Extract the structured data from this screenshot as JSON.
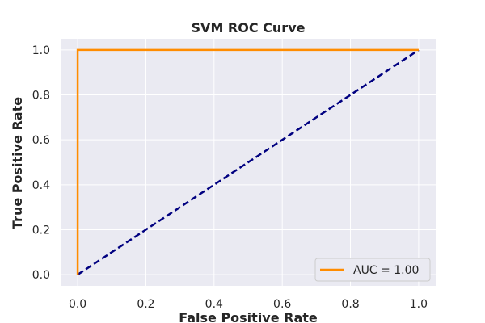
{
  "chart_data": {
    "type": "line",
    "title": "SVM ROC Curve",
    "xlabel": "False Positive Rate",
    "ylabel": "True Positive Rate",
    "xlim": [
      -0.05,
      1.05
    ],
    "ylim": [
      -0.05,
      1.05
    ],
    "xticks": [
      0.0,
      0.2,
      0.4,
      0.6,
      0.8,
      1.0
    ],
    "yticks": [
      0.0,
      0.2,
      0.4,
      0.6,
      0.8,
      1.0
    ],
    "grid": true,
    "legend_position": "lower-right",
    "background_color": "#eaeaf2",
    "grid_color": "#ffffff",
    "series": [
      {
        "name": "AUC = 1.00",
        "color": "#ff8c00",
        "style": "solid",
        "x": [
          0.0,
          0.0,
          1.0
        ],
        "y": [
          0.0,
          1.0,
          1.0
        ]
      },
      {
        "color": "#000080",
        "style": "dashed",
        "x": [
          0.0,
          1.0
        ],
        "y": [
          0.0,
          1.0
        ]
      }
    ]
  }
}
